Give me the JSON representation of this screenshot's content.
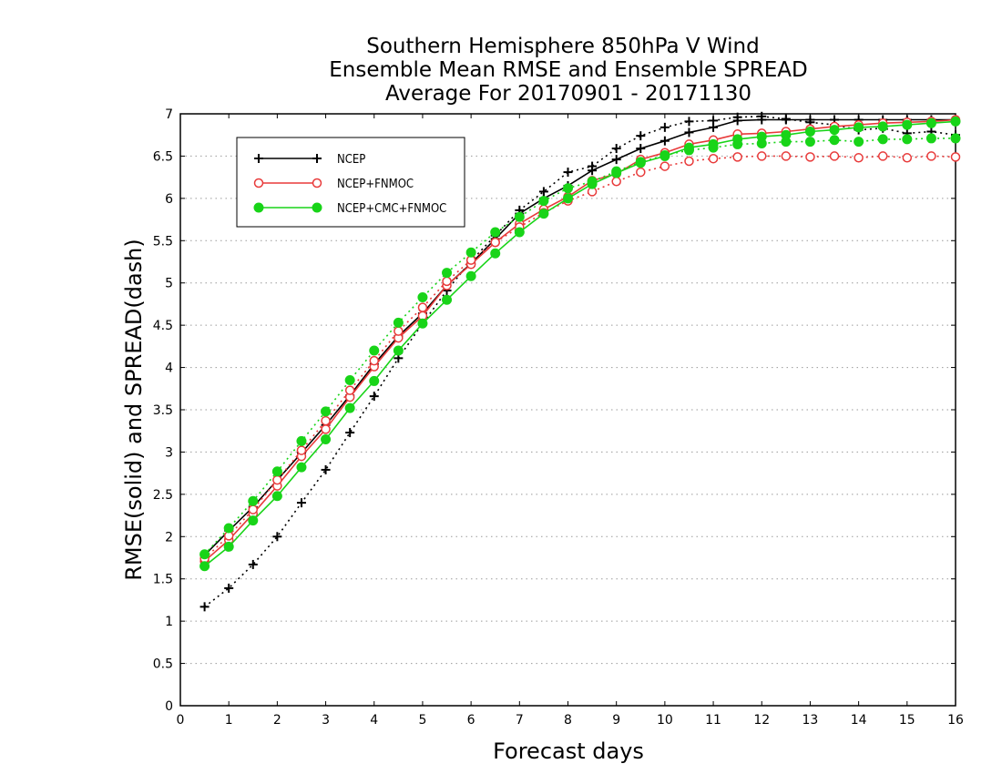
{
  "chart_data": {
    "type": "line",
    "title": [
      "Southern Hemisphere 850hPa V Wind",
      "Ensemble Mean RMSE and Ensemble SPREAD",
      "Average For 20170901 - 20171130"
    ],
    "xlabel": "Forecast days",
    "ylabel": "RMSE(solid) and SPREAD(dash)",
    "xlim": [
      0,
      16
    ],
    "ylim": [
      0,
      7
    ],
    "xticks": [
      "0",
      "1",
      "2",
      "3",
      "4",
      "5",
      "6",
      "7",
      "8",
      "9",
      "10",
      "11",
      "12",
      "13",
      "14",
      "15",
      "16"
    ],
    "yticks": [
      "0",
      "0.5",
      "1",
      "1.5",
      "2",
      "2.5",
      "3",
      "3.5",
      "4",
      "4.5",
      "5",
      "5.5",
      "6",
      "6.5",
      "7"
    ],
    "grid": "horizontal dotted",
    "legend_position": "top-left",
    "x": [
      0.5,
      1,
      1.5,
      2,
      2.5,
      3,
      3.5,
      4,
      4.5,
      5,
      5.5,
      6,
      6.5,
      7,
      7.5,
      8,
      8.5,
      9,
      9.5,
      10,
      10.5,
      11,
      11.5,
      12,
      12.5,
      13,
      13.5,
      14,
      14.5,
      15,
      15.5,
      16
    ],
    "series": [
      {
        "name": "NCEP",
        "metric": "RMSE",
        "style": "solid",
        "color": "#000000",
        "marker": "plus",
        "values": [
          1.78,
          2.07,
          2.35,
          2.67,
          2.99,
          3.32,
          3.67,
          4.04,
          4.37,
          4.64,
          4.97,
          5.23,
          5.52,
          5.82,
          6.0,
          6.15,
          6.33,
          6.46,
          6.59,
          6.68,
          6.78,
          6.84,
          6.92,
          6.93,
          6.93,
          6.93,
          6.93,
          6.93,
          6.93,
          6.93,
          6.93,
          6.93
        ]
      },
      {
        "name": "NCEP",
        "metric": "SPREAD",
        "style": "dotted",
        "color": "#000000",
        "marker": "plus",
        "values": [
          1.17,
          1.39,
          1.67,
          2.0,
          2.4,
          2.79,
          3.23,
          3.66,
          4.11,
          4.52,
          4.91,
          5.26,
          5.56,
          5.86,
          6.08,
          6.31,
          6.38,
          6.59,
          6.74,
          6.84,
          6.91,
          6.92,
          6.96,
          6.97,
          6.94,
          6.9,
          6.87,
          6.81,
          6.83,
          6.77,
          6.79,
          6.75
        ]
      },
      {
        "name": "NCEP+FNMOC",
        "metric": "RMSE",
        "style": "solid",
        "color": "#e83a3a",
        "marker": "open-circle",
        "values": [
          1.71,
          1.96,
          2.27,
          2.6,
          2.95,
          3.27,
          3.65,
          4.01,
          4.35,
          4.61,
          4.97,
          5.22,
          5.48,
          5.7,
          5.87,
          6.02,
          6.21,
          6.29,
          6.46,
          6.54,
          6.64,
          6.69,
          6.76,
          6.77,
          6.79,
          6.82,
          6.85,
          6.87,
          6.89,
          6.9,
          6.91,
          6.93
        ]
      },
      {
        "name": "NCEP+FNMOC",
        "metric": "SPREAD",
        "style": "dotted",
        "color": "#e83a3a",
        "marker": "open-circle",
        "values": [
          1.74,
          2.01,
          2.32,
          2.67,
          3.02,
          3.37,
          3.73,
          4.08,
          4.43,
          4.71,
          5.02,
          5.27,
          5.48,
          5.66,
          5.83,
          5.97,
          6.08,
          6.2,
          6.31,
          6.38,
          6.44,
          6.47,
          6.49,
          6.5,
          6.5,
          6.49,
          6.5,
          6.48,
          6.5,
          6.48,
          6.5,
          6.49
        ]
      },
      {
        "name": "NCEP+CMC+FNMOC",
        "metric": "RMSE",
        "style": "solid",
        "color": "#18d418",
        "marker": "filled-circle",
        "values": [
          1.65,
          1.88,
          2.19,
          2.48,
          2.82,
          3.15,
          3.52,
          3.84,
          4.2,
          4.52,
          4.8,
          5.08,
          5.35,
          5.6,
          5.82,
          6.0,
          6.17,
          6.3,
          6.42,
          6.5,
          6.6,
          6.64,
          6.7,
          6.73,
          6.75,
          6.79,
          6.81,
          6.84,
          6.85,
          6.87,
          6.89,
          6.91
        ]
      },
      {
        "name": "NCEP+CMC+FNMOC",
        "metric": "SPREAD",
        "style": "dotted",
        "color": "#18d418",
        "marker": "filled-circle",
        "values": [
          1.79,
          2.1,
          2.42,
          2.77,
          3.13,
          3.48,
          3.85,
          4.2,
          4.53,
          4.83,
          5.12,
          5.36,
          5.6,
          5.78,
          5.97,
          6.12,
          6.2,
          6.32,
          6.43,
          6.51,
          6.57,
          6.6,
          6.64,
          6.65,
          6.67,
          6.67,
          6.69,
          6.67,
          6.7,
          6.7,
          6.71,
          6.71
        ]
      }
    ]
  },
  "legend": {
    "items": [
      {
        "label": "NCEP",
        "color": "#000000",
        "marker": "plus"
      },
      {
        "label": "NCEP+FNMOC",
        "color": "#e83a3a",
        "marker": "open-circle"
      },
      {
        "label": "NCEP+CMC+FNMOC",
        "color": "#18d418",
        "marker": "filled-circle"
      }
    ]
  }
}
